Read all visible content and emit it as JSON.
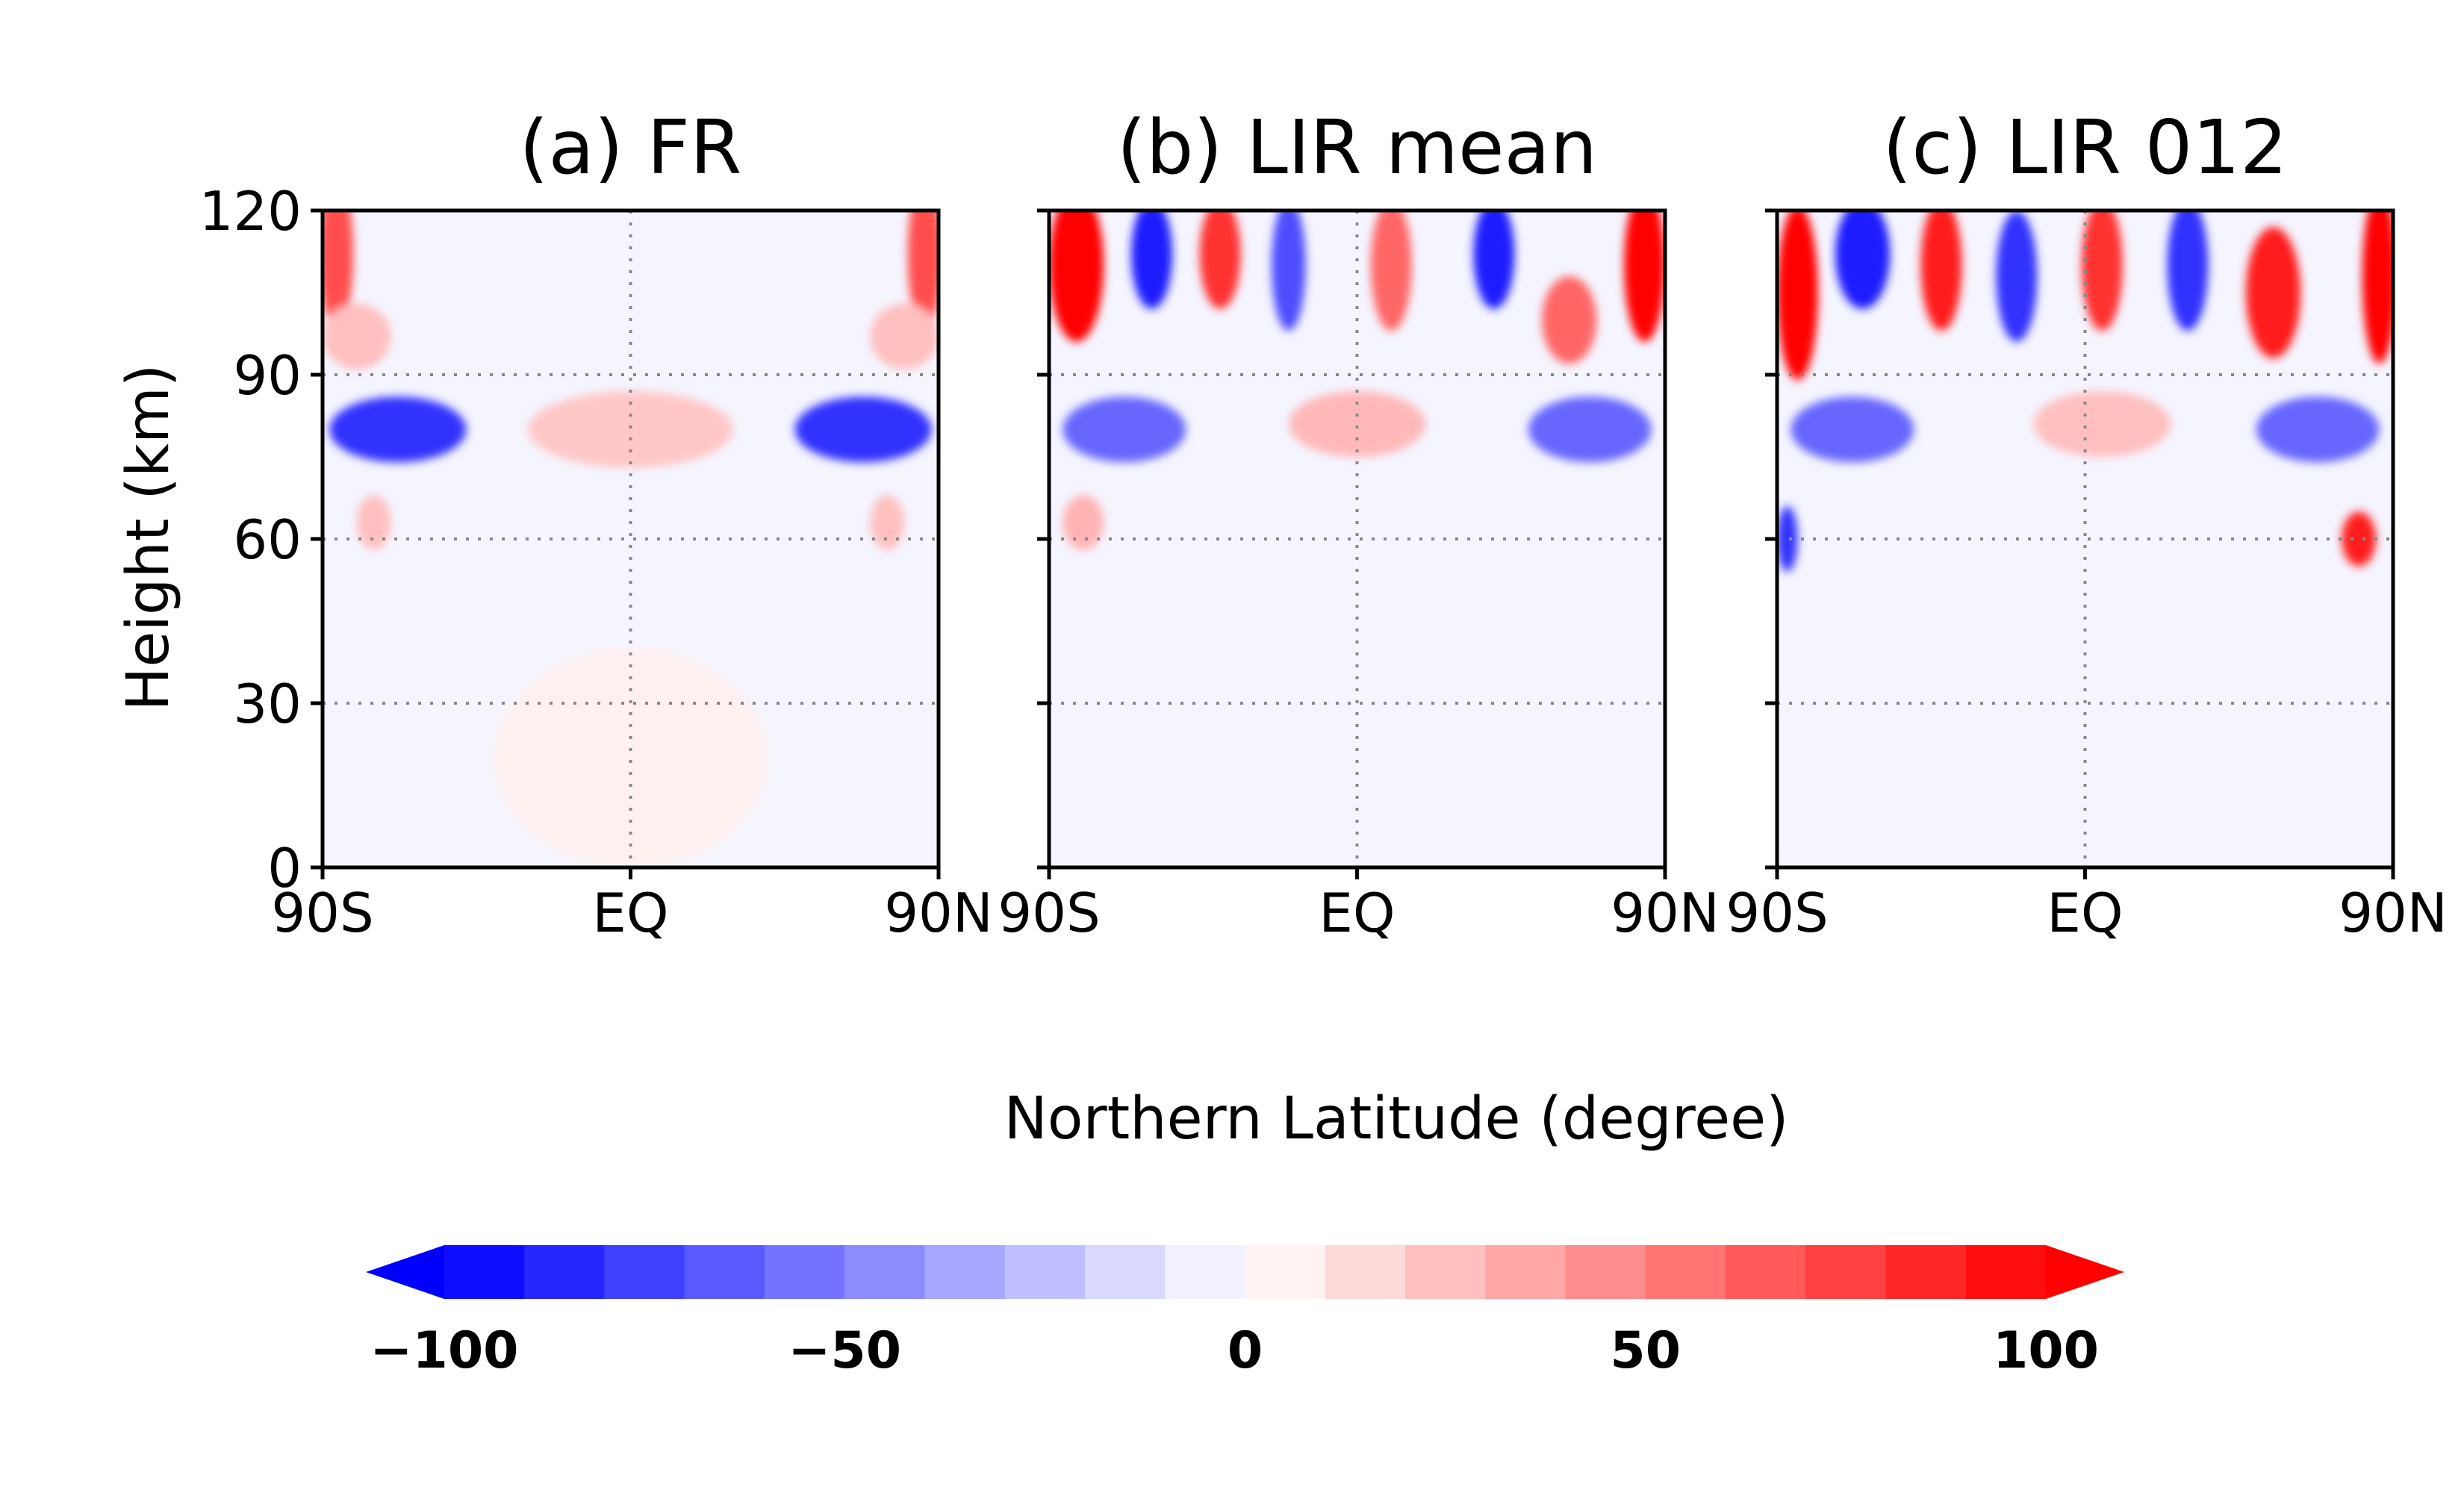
{
  "chart_data": {
    "type": "heatmap",
    "x_title": "Northern Latitude (degree)",
    "y_title": "Height (km)",
    "x_ticks": [
      "90S",
      "EQ",
      "90N"
    ],
    "x_tick_values": [
      -90,
      0,
      90
    ],
    "y_ticks": [
      "0",
      "30",
      "60",
      "90",
      "120"
    ],
    "y_tick_values": [
      0,
      30,
      60,
      90,
      120
    ],
    "xlim": [
      -90,
      90
    ],
    "ylim": [
      0,
      120
    ],
    "grid": "dotted at EQ and 30, 60, 90 km",
    "panels": [
      {
        "title": "(a) FR",
        "features": [
          {
            "lat": -68,
            "z": 80,
            "value": -80,
            "lat_width": 20,
            "z_width": 6
          },
          {
            "lat": 68,
            "z": 80,
            "value": -80,
            "lat_width": 20,
            "z_width": 6
          },
          {
            "lat": 0,
            "z": 80,
            "value": 22,
            "lat_width": 30,
            "z_width": 7
          },
          {
            "lat": -86,
            "z": 112,
            "value": 70,
            "lat_width": 5,
            "z_width": 14
          },
          {
            "lat": 86,
            "z": 112,
            "value": 70,
            "lat_width": 5,
            "z_width": 14
          },
          {
            "lat": -80,
            "z": 97,
            "value": 25,
            "lat_width": 10,
            "z_width": 6
          },
          {
            "lat": 80,
            "z": 97,
            "value": 25,
            "lat_width": 10,
            "z_width": 6
          },
          {
            "lat": -75,
            "z": 63,
            "value": 25,
            "lat_width": 5,
            "z_width": 5
          },
          {
            "lat": 75,
            "z": 63,
            "value": 25,
            "lat_width": 5,
            "z_width": 5
          },
          {
            "lat": 0,
            "z": 20,
            "value": 6,
            "lat_width": 40,
            "z_width": 20
          }
        ]
      },
      {
        "title": "(b) LIR mean",
        "features": [
          {
            "lat": -82,
            "z": 110,
            "value": 100,
            "lat_width": 8,
            "z_width": 14
          },
          {
            "lat": -60,
            "z": 112,
            "value": -90,
            "lat_width": 6,
            "z_width": 10
          },
          {
            "lat": -40,
            "z": 112,
            "value": 80,
            "lat_width": 6,
            "z_width": 10
          },
          {
            "lat": -20,
            "z": 110,
            "value": -70,
            "lat_width": 5,
            "z_width": 12
          },
          {
            "lat": 10,
            "z": 110,
            "value": 60,
            "lat_width": 6,
            "z_width": 12
          },
          {
            "lat": 40,
            "z": 112,
            "value": -90,
            "lat_width": 6,
            "z_width": 10
          },
          {
            "lat": 62,
            "z": 100,
            "value": 60,
            "lat_width": 8,
            "z_width": 8
          },
          {
            "lat": 84,
            "z": 110,
            "value": 100,
            "lat_width": 6,
            "z_width": 14
          },
          {
            "lat": -68,
            "z": 80,
            "value": -60,
            "lat_width": 18,
            "z_width": 6
          },
          {
            "lat": 68,
            "z": 80,
            "value": -60,
            "lat_width": 18,
            "z_width": 6
          },
          {
            "lat": 0,
            "z": 81,
            "value": 28,
            "lat_width": 20,
            "z_width": 6
          },
          {
            "lat": -80,
            "z": 63,
            "value": 30,
            "lat_width": 6,
            "z_width": 5
          }
        ]
      },
      {
        "title": "(c) LIR 012",
        "features": [
          {
            "lat": -84,
            "z": 105,
            "value": 100,
            "lat_width": 6,
            "z_width": 16
          },
          {
            "lat": -65,
            "z": 112,
            "value": -90,
            "lat_width": 8,
            "z_width": 10
          },
          {
            "lat": -42,
            "z": 110,
            "value": 90,
            "lat_width": 6,
            "z_width": 12
          },
          {
            "lat": -20,
            "z": 108,
            "value": -80,
            "lat_width": 6,
            "z_width": 12
          },
          {
            "lat": 5,
            "z": 110,
            "value": 80,
            "lat_width": 6,
            "z_width": 12
          },
          {
            "lat": 30,
            "z": 110,
            "value": -80,
            "lat_width": 6,
            "z_width": 12
          },
          {
            "lat": 55,
            "z": 105,
            "value": 90,
            "lat_width": 8,
            "z_width": 12
          },
          {
            "lat": 86,
            "z": 108,
            "value": 100,
            "lat_width": 5,
            "z_width": 16
          },
          {
            "lat": -68,
            "z": 80,
            "value": -60,
            "lat_width": 18,
            "z_width": 6
          },
          {
            "lat": 68,
            "z": 80,
            "value": -60,
            "lat_width": 18,
            "z_width": 6
          },
          {
            "lat": 5,
            "z": 81,
            "value": 25,
            "lat_width": 20,
            "z_width": 6
          },
          {
            "lat": -87,
            "z": 60,
            "value": -80,
            "lat_width": 3,
            "z_width": 6
          },
          {
            "lat": 80,
            "z": 60,
            "value": 90,
            "lat_width": 5,
            "z_width": 5
          }
        ]
      }
    ],
    "colorbar": {
      "min": -100,
      "max": 100,
      "step": 10,
      "extend": "both",
      "tick_labels": [
        "−100",
        "−50",
        "0",
        "50",
        "100"
      ],
      "tick_values": [
        -100,
        -50,
        0,
        50,
        100
      ],
      "negative_color": "#0000ff",
      "positive_color": "#ff0000",
      "neutral_color": "#ffffff"
    }
  }
}
